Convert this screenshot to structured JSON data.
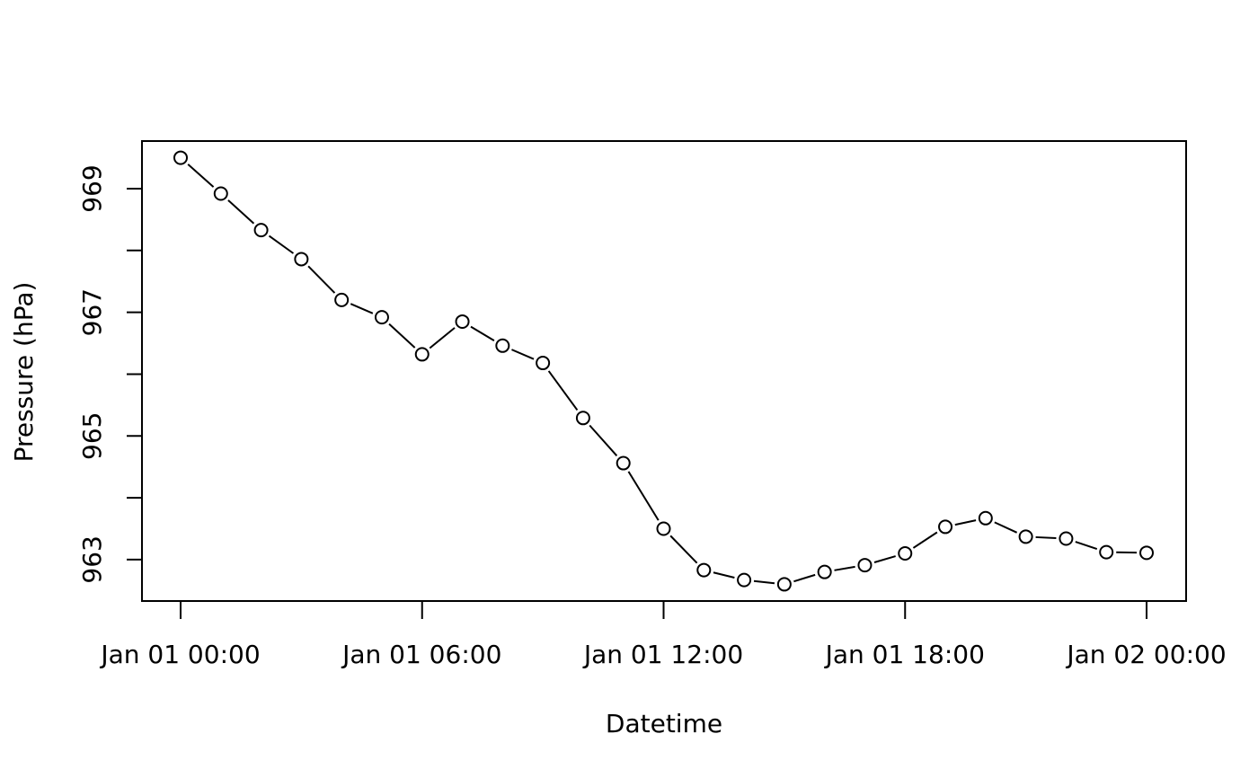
{
  "chart_data": {
    "type": "line",
    "title": "",
    "xlabel": "Datetime",
    "ylabel": "Pressure (hPa)",
    "x": [
      "Jan 01 00:00",
      "Jan 01 01:00",
      "Jan 01 02:00",
      "Jan 01 03:00",
      "Jan 01 04:00",
      "Jan 01 05:00",
      "Jan 01 06:00",
      "Jan 01 07:00",
      "Jan 01 08:00",
      "Jan 01 09:00",
      "Jan 01 10:00",
      "Jan 01 11:00",
      "Jan 01 12:00",
      "Jan 01 13:00",
      "Jan 01 14:00",
      "Jan 01 15:00",
      "Jan 01 16:00",
      "Jan 01 17:00",
      "Jan 01 18:00",
      "Jan 01 19:00",
      "Jan 01 20:00",
      "Jan 01 21:00",
      "Jan 01 22:00",
      "Jan 01 23:00",
      "Jan 02 00:00"
    ],
    "values": [
      969.5,
      968.92,
      968.33,
      967.86,
      967.2,
      966.92,
      966.32,
      966.85,
      966.46,
      966.18,
      965.29,
      964.56,
      963.5,
      962.83,
      962.67,
      962.6,
      962.8,
      962.91,
      963.1,
      963.53,
      963.67,
      963.37,
      963.34,
      963.12,
      963.11
    ],
    "xticks": [
      "Jan 01 00:00",
      "Jan 01 06:00",
      "Jan 01 12:00",
      "Jan 01 18:00",
      "Jan 02 00:00"
    ],
    "xlim": [
      "Jan 01 00:00",
      "Jan 02 00:00"
    ],
    "yticks": [
      963,
      964,
      965,
      966,
      967,
      968,
      969
    ],
    "ytick_labels": [
      "963",
      "",
      "965",
      "",
      "967",
      "",
      "969"
    ],
    "ylim": [
      962.33,
      969.77
    ],
    "marker": "open-circle",
    "line_style": "solid",
    "grid": false,
    "legend": "none"
  }
}
